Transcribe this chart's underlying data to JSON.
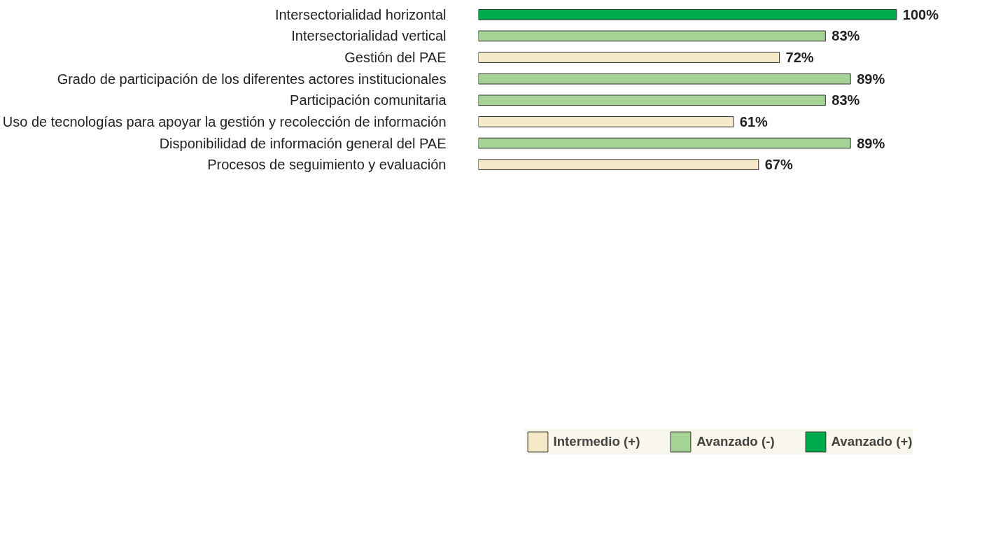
{
  "chart_data": {
    "type": "bar",
    "orientation": "horizontal",
    "categories": [
      "Intersectorialidad horizontal",
      "Intersectorialidad vertical",
      "Gestión del PAE",
      "Grado de participación de los diferentes actores institucionales",
      "Participación comunitaria",
      "Uso de tecnologías para apoyar la gestión y recolección de información",
      "Disponibilidad de información general del PAE",
      "Procesos de seguimiento y evaluación"
    ],
    "series": [
      {
        "name": "Intermedio (+)",
        "color": "#f5e9c8",
        "values": [
          null,
          null,
          72,
          null,
          null,
          61,
          null,
          67
        ],
        "value_labels": [
          null,
          null,
          "72%",
          null,
          null,
          "61%",
          null,
          "67%"
        ]
      },
      {
        "name": "Avanzado (-)",
        "color": "#a5d395",
        "values": [
          null,
          83,
          null,
          89,
          83,
          null,
          89,
          null
        ],
        "value_labels": [
          null,
          "83%",
          null,
          "89%",
          "83%",
          null,
          "89%",
          null
        ]
      },
      {
        "name": "Avanzado (+)",
        "color": "#00ab4e",
        "values": [
          100,
          null,
          null,
          null,
          null,
          null,
          null,
          null
        ],
        "value_labels": [
          "100%",
          null,
          null,
          null,
          null,
          null,
          null,
          null
        ]
      }
    ],
    "legend": "bottom",
    "grid": false,
    "tick_labels": "y"
  }
}
